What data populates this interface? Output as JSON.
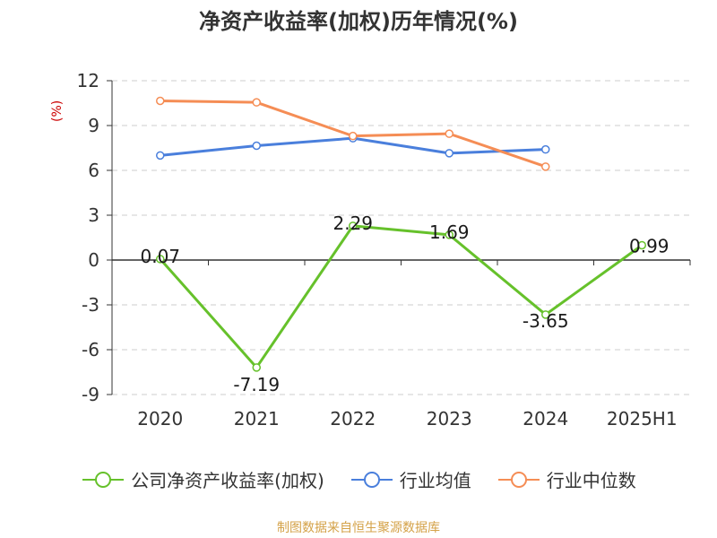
{
  "chart_data": {
    "type": "line",
    "title": "净资产收益率(加权)历年情况(%)",
    "ylabel": "(%)",
    "xlabel": "",
    "categories": [
      "2020",
      "2021",
      "2022",
      "2023",
      "2024",
      "2025H1"
    ],
    "ylim": [
      -9,
      12
    ],
    "yticks": [
      12,
      9,
      6,
      3,
      0,
      -3,
      -6,
      -9
    ],
    "grid": true,
    "legend_position": "bottom",
    "series": [
      {
        "name": "公司净资产收益率(加权)",
        "color": "#66c12b",
        "values": [
          0.07,
          -7.19,
          2.29,
          1.69,
          -3.65,
          0.99
        ],
        "labels": [
          "0.07",
          "-7.19",
          "2.29",
          "1.69",
          "-3.65",
          "0.99"
        ]
      },
      {
        "name": "行业均值",
        "color": "#4a7fdc",
        "values": [
          7.0,
          7.65,
          8.15,
          7.15,
          7.4,
          null
        ]
      },
      {
        "name": "行业中位数",
        "color": "#f58d55",
        "values": [
          10.65,
          10.55,
          8.3,
          8.45,
          6.25,
          null
        ]
      }
    ]
  },
  "source": "制图数据来自恒生聚源数据库"
}
